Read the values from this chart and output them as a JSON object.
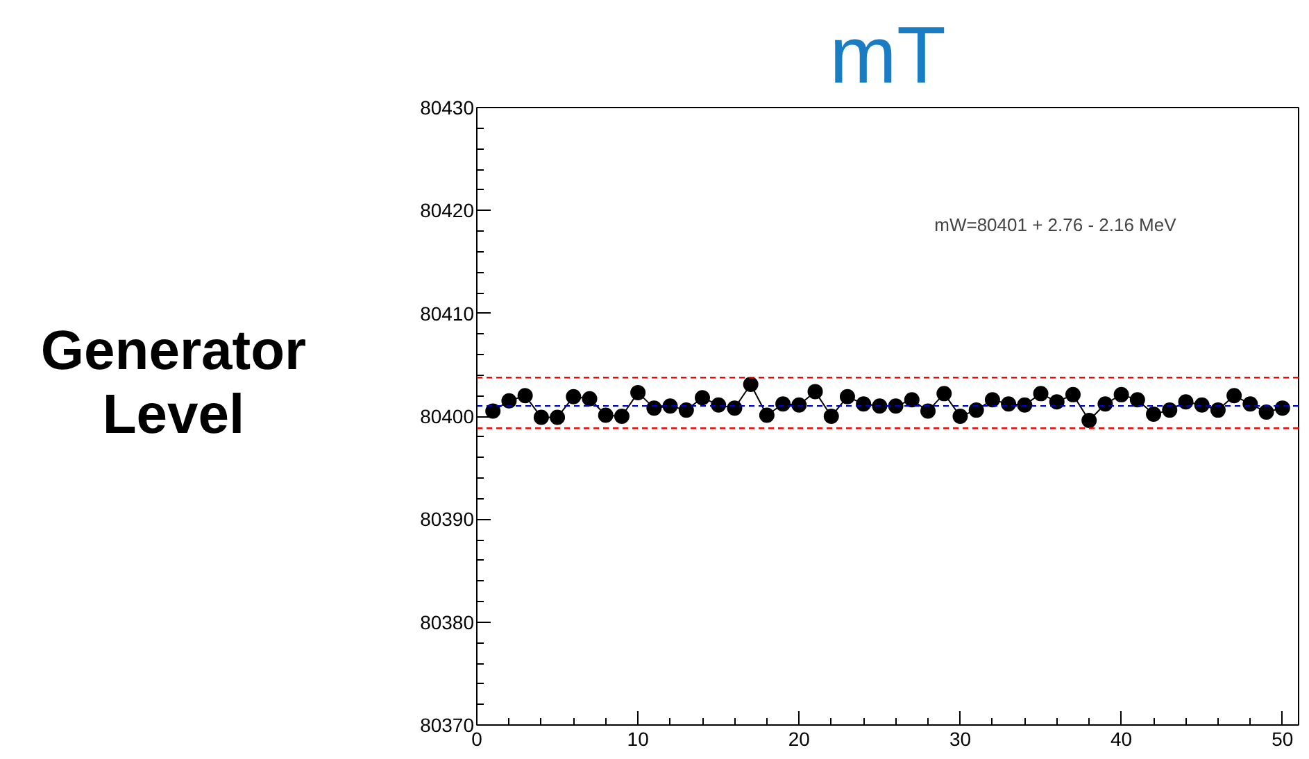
{
  "chart_data": {
    "type": "line",
    "title": "mT",
    "ylabel": "Generator\nLevel",
    "x": [
      1,
      2,
      3,
      4,
      5,
      6,
      7,
      8,
      9,
      10,
      11,
      12,
      13,
      14,
      15,
      16,
      17,
      18,
      19,
      20,
      21,
      22,
      23,
      24,
      25,
      26,
      27,
      28,
      29,
      30,
      31,
      32,
      33,
      34,
      35,
      36,
      37,
      38,
      39,
      40,
      41,
      42,
      43,
      44,
      45,
      46,
      47,
      48,
      49,
      50
    ],
    "series": [
      {
        "color": "#000000",
        "values": [
          80400.5,
          80401.5,
          80402.0,
          80399.9,
          80399.9,
          80401.9,
          80401.7,
          80400.1,
          80400.0,
          80402.3,
          80400.8,
          80401.0,
          80400.6,
          80401.8,
          80401.1,
          80400.8,
          80403.1,
          80400.1,
          80401.2,
          80401.1,
          80402.4,
          80400.0,
          80401.9,
          80401.2,
          80401.0,
          80401.0,
          80401.6,
          80400.5,
          80402.2,
          80400.0,
          80400.6,
          80401.6,
          80401.2,
          80401.1,
          80402.2,
          80401.4,
          80402.1,
          80399.6,
          80401.2,
          80402.1,
          80401.6,
          80400.2,
          80400.6,
          80401.4,
          80401.1,
          80400.6,
          80402.0,
          80401.2,
          80400.4,
          80400.8
        ]
      }
    ],
    "marker": "circle",
    "line_style": "solid",
    "grid": false,
    "xlim": [
      0,
      51
    ],
    "ylim": [
      80370,
      80430
    ],
    "xticks": [
      0,
      10,
      20,
      30,
      40,
      50
    ],
    "yticks": [
      80370,
      80380,
      80390,
      80400,
      80410,
      80420,
      80430
    ],
    "ref_lines": [
      {
        "axis": "y",
        "value": 80403.76,
        "color": "#ff0000",
        "line_style": "dashed"
      },
      {
        "axis": "y",
        "value": 80398.84,
        "color": "#ff0000",
        "line_style": "dashed"
      },
      {
        "axis": "y",
        "value": 80401,
        "color": "#0000cc",
        "line_style": "dashed"
      }
    ],
    "annotations": [
      "mW=80401 +  2.76 -  2.16 MeV"
    ]
  }
}
